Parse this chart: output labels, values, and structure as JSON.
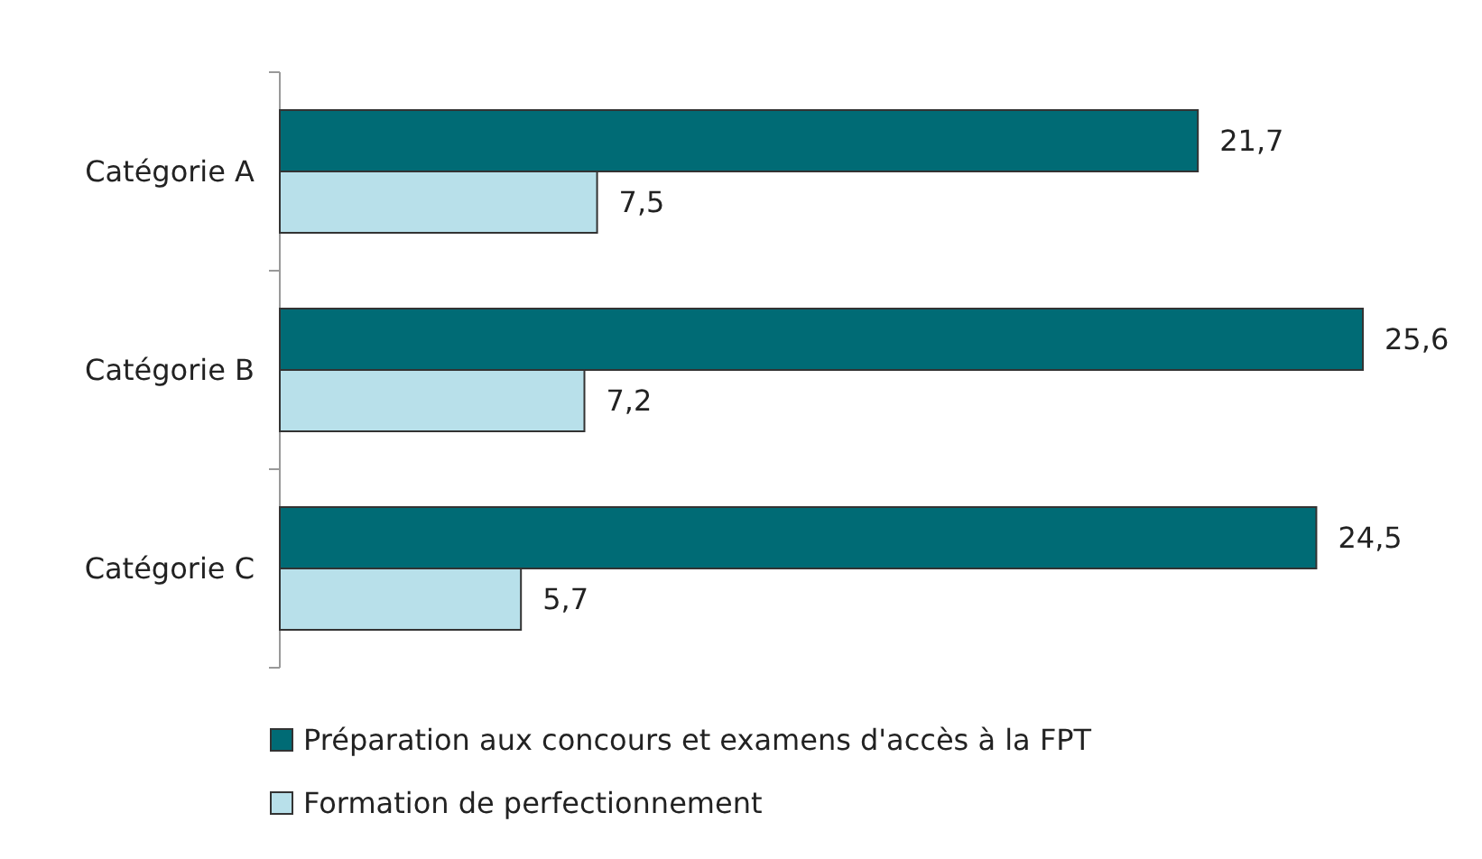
{
  "chart_data": {
    "type": "bar",
    "orientation": "horizontal",
    "categories": [
      "Catégorie A",
      "Catégorie B",
      "Catégorie C"
    ],
    "series": [
      {
        "name": "Préparation aux concours et examens d'accès à la FPT",
        "color": "#006b75",
        "values": [
          21.7,
          25.6,
          24.5
        ],
        "value_labels": [
          "21,7",
          "25,6",
          "24,5"
        ]
      },
      {
        "name": "Formation de perfectionnement",
        "color": "#b8e0ea",
        "values": [
          7.5,
          7.2,
          5.7
        ],
        "value_labels": [
          "7,5",
          "7,2",
          "5,7"
        ]
      }
    ],
    "legend": "bottom"
  }
}
